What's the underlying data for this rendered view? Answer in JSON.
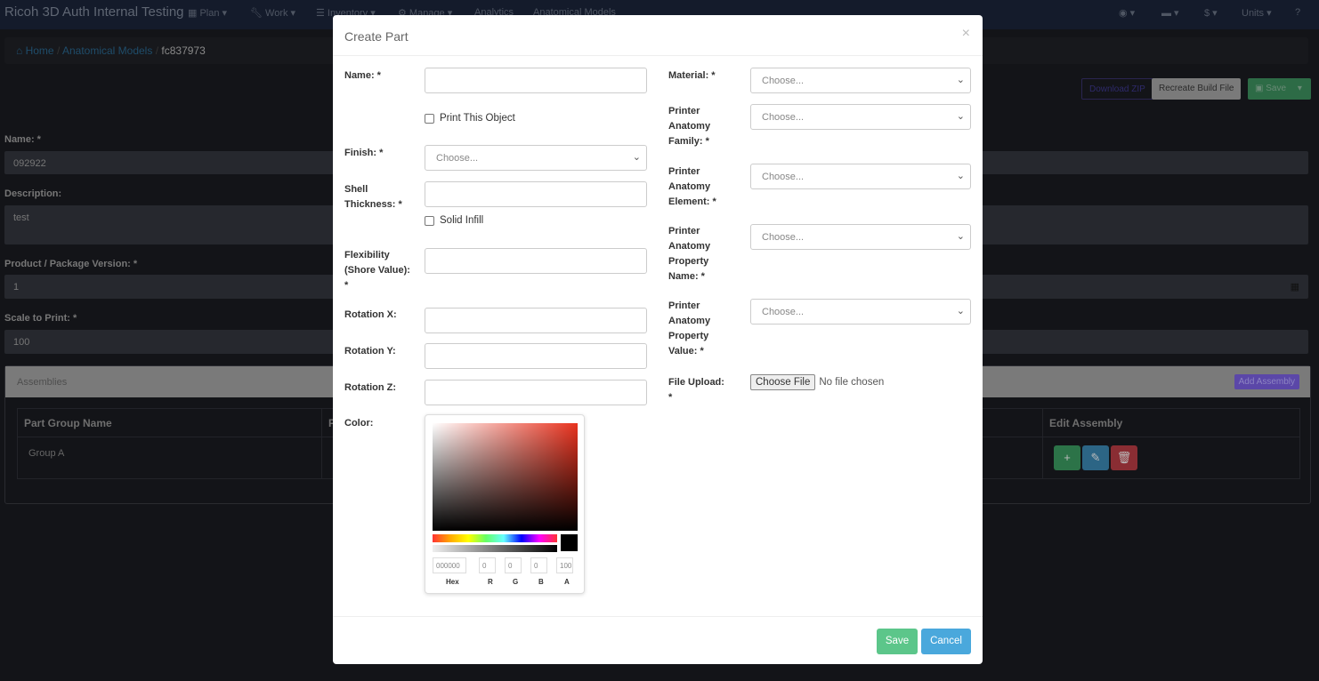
{
  "nav": {
    "brand": "Ricoh 3D Auth Internal Testing",
    "items": [
      "Plan",
      "Work",
      "Inventory",
      "Manage",
      "Analytics",
      "Anatomical Models"
    ],
    "right": [
      "Units"
    ],
    "currency": "$"
  },
  "breadcrumb": {
    "home": "Home",
    "section": "Anatomical Models",
    "current": "fc837973"
  },
  "toolbar": {
    "download": "Download ZIP",
    "recreate": "Recreate Build File",
    "save": "Save"
  },
  "form": {
    "name_label": "Name: *",
    "name_value": "092922",
    "description_label": "Description:",
    "description_value": "test",
    "version_label": "Product / Package Version: *",
    "version_value": "1",
    "scale_label": "Scale to Print: *",
    "scale_value": "100"
  },
  "assemblies": {
    "title": "Assemblies",
    "add": "Add Assembly",
    "columns": [
      "Part Group Name",
      "P",
      "Edit Assembly"
    ],
    "rows": [
      {
        "name": "Group A"
      }
    ]
  },
  "modal": {
    "title": "Create Part",
    "close": "×",
    "left": {
      "name": "Name: *",
      "print": "Print This Object",
      "finish": "Finish: *",
      "choose": "Choose...",
      "shell": "Shell Thickness: *",
      "solid": "Solid Infill",
      "flex": "Flexibility (Shore Value): *",
      "rotx": "Rotation X:",
      "roty": "Rotation Y:",
      "rotz": "Rotation Z:",
      "color": "Color:"
    },
    "right": {
      "material": "Material: *",
      "family": "Printer Anatomy Family: *",
      "element": "Printer Anatomy Element: *",
      "propname": "Printer Anatomy Property Name: *",
      "propvalue": "Printer Anatomy Property Value: *",
      "upload": "File Upload: *",
      "choose_file": "Choose File",
      "no_file": "No file chosen",
      "choose": "Choose..."
    },
    "picker": {
      "hex": "000000",
      "r": "0",
      "g": "0",
      "b": "0",
      "a": "100",
      "labels": [
        "Hex",
        "R",
        "G",
        "B",
        "A"
      ],
      "hue_color": "#e8321e",
      "selected_color": "#000000"
    },
    "save": "Save",
    "cancel": "Cancel"
  },
  "colors": {
    "success": "#5cc68a",
    "info": "#4aa8dc",
    "nav": "#141b2b"
  }
}
